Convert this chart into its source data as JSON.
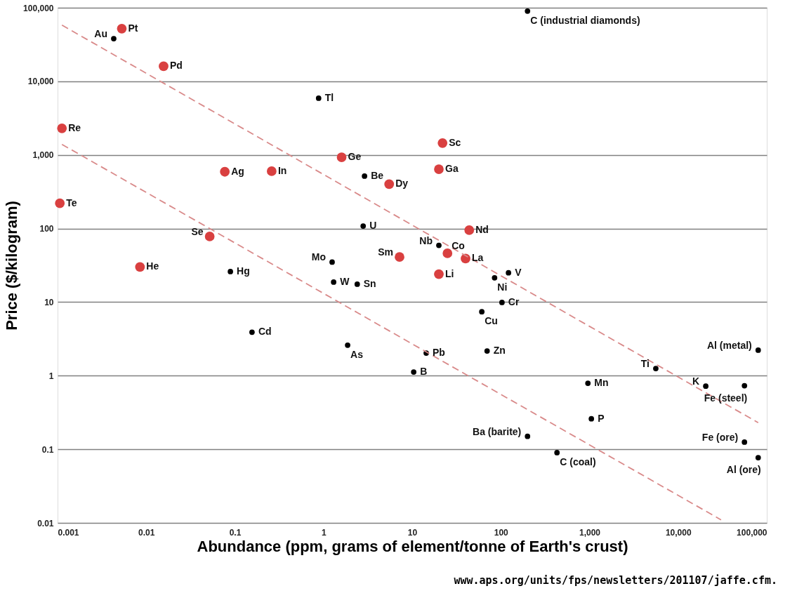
{
  "chart_data": {
    "type": "scatter",
    "xlabel": "Abundance (ppm, grams of element/tonne of Earth's crust)",
    "ylabel": "Price ($/kilogram)",
    "log": "xy",
    "grid": "y",
    "xlim": [
      0.001,
      100000
    ],
    "xticks": [
      0.001,
      0.01,
      0.1,
      1,
      10,
      100,
      {
        "value": 1000,
        "label": "1,000"
      },
      {
        "value": 10000,
        "label": "10,000"
      },
      {
        "value": 100000,
        "label": "100,000"
      }
    ],
    "ylim": [
      0.01,
      100000
    ],
    "yticks": [
      0.01,
      0.1,
      1,
      10,
      100,
      {
        "value": 1000,
        "label": "1,000"
      },
      {
        "value": 10000,
        "label": "10,000"
      },
      {
        "value": 100000,
        "label": "100,000"
      }
    ],
    "series": [
      {
        "marker": "circle",
        "color": "#d94040",
        "x": [
          0.0053,
          0.0157,
          0.00112,
          0.00106,
          0.077,
          0.26,
          1.6,
          0.052,
          0.0085,
          5.5,
          22,
          20,
          44,
          25,
          40,
          7.2,
          20
        ],
        "values": [
          52000,
          16000,
          2300,
          220,
          590,
          600,
          930,
          78,
          30,
          400,
          1450,
          640,
          95,
          46,
          39,
          41,
          24
        ]
      },
      {
        "marker": "circle",
        "color": "#000000",
        "x": [
          0.0043,
          200,
          0.88,
          2.9,
          2.8,
          1.25,
          1.3,
          2.4,
          0.089,
          0.156,
          1.87,
          20,
          122,
          85,
          103,
          61,
          70,
          14.4,
          10.4,
          80000,
          5600,
          20500,
          56000,
          960,
          1050,
          200,
          430,
          56000,
          80000
        ],
        "values": [
          38000,
          90000,
          5900,
          515,
          108,
          35,
          18.7,
          17.5,
          26,
          3.9,
          2.6,
          59,
          25,
          21.4,
          9.9,
          7.4,
          2.17,
          2.03,
          1.12,
          2.22,
          1.25,
          0.72,
          0.73,
          0.79,
          0.26,
          0.15,
          0.09,
          0.125,
          0.077
        ]
      },
      {
        "type": "line",
        "marker": "none",
        "line_style": "dashed",
        "color": "#d98a8a",
        "x": [
          0.00112,
          80000
        ],
        "values": [
          58000,
          0.23
        ]
      },
      {
        "type": "line",
        "marker": "none",
        "line_style": "dashed",
        "color": "#d98a8a",
        "x": [
          0.00112,
          30500
        ],
        "values": [
          1390,
          0.011
        ]
      }
    ],
    "annotations": [
      {
        "text": "Pt",
        "x": 0.0053,
        "y": 52000
      },
      {
        "text": "Pd",
        "x": 0.0157,
        "y": 16000
      },
      {
        "text": "Re",
        "x": 0.00112,
        "y": 2300
      },
      {
        "text": "Te",
        "x": 0.00106,
        "y": 220
      },
      {
        "text": "Ag",
        "x": 0.077,
        "y": 590
      },
      {
        "text": "In",
        "x": 0.26,
        "y": 600
      },
      {
        "text": "Ge",
        "x": 1.6,
        "y": 930
      },
      {
        "text": "Se",
        "x": 0.052,
        "y": 78
      },
      {
        "text": "He",
        "x": 0.0085,
        "y": 30
      },
      {
        "text": "Dy",
        "x": 5.5,
        "y": 400
      },
      {
        "text": "Sc",
        "x": 22,
        "y": 1450
      },
      {
        "text": "Ga",
        "x": 20,
        "y": 640
      },
      {
        "text": "Nd",
        "x": 44,
        "y": 95
      },
      {
        "text": "Co",
        "x": 25,
        "y": 46
      },
      {
        "text": "La",
        "x": 40,
        "y": 39
      },
      {
        "text": "Sm",
        "x": 7.2,
        "y": 41
      },
      {
        "text": "Li",
        "x": 20,
        "y": 24
      },
      {
        "text": "Au",
        "x": 0.0043,
        "y": 38000
      },
      {
        "text": "C (industrial diamonds)",
        "x": 200,
        "y": 90000
      },
      {
        "text": "Tl",
        "x": 0.88,
        "y": 5900
      },
      {
        "text": "Be",
        "x": 2.9,
        "y": 515
      },
      {
        "text": "U",
        "x": 2.8,
        "y": 108
      },
      {
        "text": "Mo",
        "x": 1.25,
        "y": 35
      },
      {
        "text": "W",
        "x": 1.3,
        "y": 18.7
      },
      {
        "text": "Sn",
        "x": 2.4,
        "y": 17.5
      },
      {
        "text": "Hg",
        "x": 0.089,
        "y": 26
      },
      {
        "text": "Cd",
        "x": 0.156,
        "y": 3.9
      },
      {
        "text": "As",
        "x": 1.87,
        "y": 2.6
      },
      {
        "text": "Nb",
        "x": 20,
        "y": 59
      },
      {
        "text": "V",
        "x": 122,
        "y": 25
      },
      {
        "text": "Ni",
        "x": 85,
        "y": 21.4
      },
      {
        "text": "Cr",
        "x": 103,
        "y": 9.9
      },
      {
        "text": "Cu",
        "x": 61,
        "y": 7.4
      },
      {
        "text": "Zn",
        "x": 70,
        "y": 2.17
      },
      {
        "text": "Pb",
        "x": 14.4,
        "y": 2.03
      },
      {
        "text": "B",
        "x": 10.4,
        "y": 1.12
      },
      {
        "text": "Al (metal)",
        "x": 80000,
        "y": 2.22
      },
      {
        "text": "Ti",
        "x": 5600,
        "y": 1.25
      },
      {
        "text": "K",
        "x": 20500,
        "y": 0.72
      },
      {
        "text": "Fe (steel)",
        "x": 56000,
        "y": 0.73
      },
      {
        "text": "Mn",
        "x": 960,
        "y": 0.79
      },
      {
        "text": "P",
        "x": 1050,
        "y": 0.26
      },
      {
        "text": "Ba (barite)",
        "x": 200,
        "y": 0.15
      },
      {
        "text": "C (coal)",
        "x": 430,
        "y": 0.09
      },
      {
        "text": "Fe (ore)",
        "x": 56000,
        "y": 0.125
      },
      {
        "text": "Al (ore)",
        "x": 80000,
        "y": 0.077
      },
      "www.aps.org/units/fps/newsletters/201107/jaffe.cfm."
    ]
  }
}
